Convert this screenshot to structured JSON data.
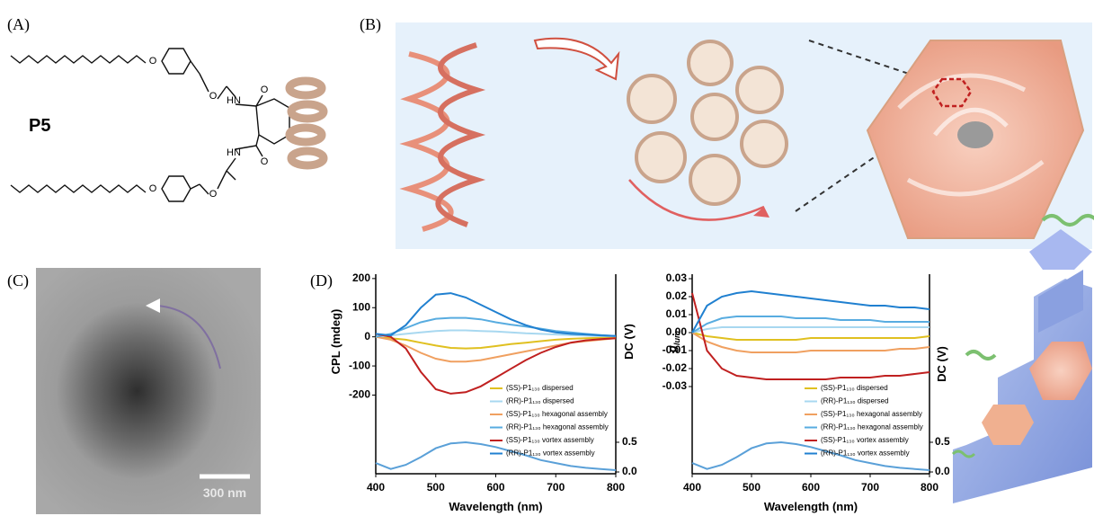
{
  "panels": {
    "a": {
      "label": "(A)",
      "compound": "P5",
      "atoms": [
        "O",
        "O",
        "O",
        "HN",
        "HN",
        "O",
        "O",
        "O"
      ]
    },
    "b": {
      "label": "(B)"
    },
    "c": {
      "label": "(C)",
      "scale_bar": "300 nm"
    },
    "d": {
      "label": "(D)"
    }
  },
  "chart_data": [
    {
      "type": "line",
      "xlabel": "Wavelength (nm)",
      "ylabel": "CPL (mdeg)",
      "y2label": "DC (V)",
      "x": [
        400,
        425,
        450,
        475,
        500,
        525,
        550,
        575,
        600,
        625,
        650,
        675,
        700,
        725,
        750,
        775,
        800
      ],
      "xlim": [
        400,
        800
      ],
      "xticks": [
        400,
        500,
        600,
        700,
        800
      ],
      "ylim": [
        -470,
        215
      ],
      "yticks": [
        200,
        100,
        0,
        -100,
        -200
      ],
      "y2lim": [
        -0.03,
        3.33
      ],
      "y2ticks": [
        {
          "value": 0,
          "label": "0.0"
        },
        {
          "value": 0.5,
          "label": "0.5"
        }
      ],
      "series": [
        {
          "name": "(SS)-P1₁₃₀ dispersed",
          "color": "#e0c020",
          "values": [
            0,
            -5,
            -10,
            -20,
            -30,
            -38,
            -40,
            -38,
            -32,
            -25,
            -20,
            -15,
            -10,
            -7,
            -5,
            -3,
            -2
          ]
        },
        {
          "name": "(RR)-P1₁₃₀ dispersed",
          "color": "#a8d8f0",
          "values": [
            0,
            5,
            10,
            15,
            20,
            22,
            22,
            20,
            18,
            15,
            12,
            10,
            8,
            6,
            4,
            3,
            2
          ]
        },
        {
          "name": "(SS)-P1₁₃₀ hexagonal assembly",
          "color": "#f0a060",
          "values": [
            0,
            -10,
            -30,
            -55,
            -75,
            -85,
            -85,
            -80,
            -70,
            -60,
            -50,
            -40,
            -30,
            -20,
            -15,
            -10,
            -5
          ]
        },
        {
          "name": "(RR)-P1₁₃₀ hexagonal assembly",
          "color": "#58ace0",
          "values": [
            0,
            10,
            30,
            50,
            62,
            65,
            65,
            60,
            50,
            42,
            35,
            28,
            20,
            15,
            10,
            6,
            3
          ]
        },
        {
          "name": "(SS)-P1₁₃₀ vortex assembly",
          "color": "#c02020",
          "values": [
            10,
            0,
            -40,
            -120,
            -180,
            -195,
            -190,
            -170,
            -140,
            -110,
            -80,
            -55,
            -35,
            -20,
            -12,
            -8,
            -5
          ]
        },
        {
          "name": "(RR)-P1₁₃₀ vortex assembly",
          "color": "#2080d0",
          "values": [
            10,
            5,
            40,
            100,
            145,
            150,
            135,
            110,
            85,
            60,
            40,
            25,
            15,
            10,
            8,
            5,
            3
          ]
        }
      ],
      "dc": {
        "color": "#5aa0d8",
        "axis": "y2",
        "values": [
          0.15,
          0.05,
          0.12,
          0.25,
          0.4,
          0.48,
          0.5,
          0.47,
          0.42,
          0.35,
          0.28,
          0.2,
          0.15,
          0.1,
          0.07,
          0.05,
          0.03
        ]
      }
    },
    {
      "type": "line",
      "xlabel": "Wavelength (nm)",
      "ylabel": {
        "main": "g",
        "sub": "lum"
      },
      "y2label": "DC (V)",
      "x": [
        400,
        425,
        450,
        475,
        500,
        525,
        550,
        575,
        600,
        625,
        650,
        675,
        700,
        725,
        750,
        775,
        800
      ],
      "xlim": [
        400,
        800
      ],
      "xticks": [
        400,
        500,
        600,
        700,
        800
      ],
      "ylim": [
        -0.0785,
        0.0325
      ],
      "yticks": [
        0.03,
        0.02,
        0.01,
        {
          "value": 0,
          "label": "0.00"
        },
        -0.01,
        -0.02,
        -0.03
      ],
      "y2lim": [
        -0.03,
        3.33
      ],
      "y2ticks": [
        {
          "value": 0,
          "label": "0.0"
        },
        {
          "value": 0.5,
          "label": "0.5"
        }
      ],
      "series": [
        {
          "name": "(SS)-P1₁₃₀ dispersed",
          "color": "#e0c020",
          "values": [
            0,
            -0.002,
            -0.003,
            -0.004,
            -0.004,
            -0.004,
            -0.004,
            -0.004,
            -0.003,
            -0.003,
            -0.003,
            -0.003,
            -0.003,
            -0.003,
            -0.003,
            -0.003,
            -0.002
          ]
        },
        {
          "name": "(RR)-P1₁₃₀ dispersed",
          "color": "#a8d8f0",
          "values": [
            0,
            0.002,
            0.003,
            0.003,
            0.003,
            0.003,
            0.003,
            0.003,
            0.003,
            0.003,
            0.003,
            0.003,
            0.003,
            0.003,
            0.003,
            0.003,
            0.003
          ]
        },
        {
          "name": "(SS)-P1₁₃₀ hexagonal assembly",
          "color": "#f0a060",
          "values": [
            0,
            -0.005,
            -0.008,
            -0.01,
            -0.011,
            -0.011,
            -0.011,
            -0.011,
            -0.01,
            -0.01,
            -0.01,
            -0.01,
            -0.01,
            -0.01,
            -0.009,
            -0.009,
            -0.008
          ]
        },
        {
          "name": "(RR)-P1₁₃₀ hexagonal assembly",
          "color": "#58ace0",
          "values": [
            0,
            0.005,
            0.008,
            0.009,
            0.009,
            0.009,
            0.009,
            0.008,
            0.008,
            0.008,
            0.007,
            0.007,
            0.007,
            0.006,
            0.006,
            0.006,
            0.006
          ]
        },
        {
          "name": "(SS)-P1₁₃₀ vortex assembly",
          "color": "#c02020",
          "values": [
            0.022,
            -0.01,
            -0.02,
            -0.024,
            -0.025,
            -0.026,
            -0.026,
            -0.026,
            -0.026,
            -0.026,
            -0.025,
            -0.025,
            -0.025,
            -0.024,
            -0.024,
            -0.023,
            -0.022
          ]
        },
        {
          "name": "(RR)-P1₁₃₀ vortex assembly",
          "color": "#2080d0",
          "values": [
            0,
            0.015,
            0.02,
            0.022,
            0.023,
            0.022,
            0.021,
            0.02,
            0.019,
            0.018,
            0.017,
            0.016,
            0.015,
            0.015,
            0.014,
            0.014,
            0.013
          ]
        }
      ],
      "dc": {
        "color": "#5aa0d8",
        "axis": "y2",
        "values": [
          0.15,
          0.05,
          0.12,
          0.25,
          0.4,
          0.48,
          0.5,
          0.47,
          0.42,
          0.35,
          0.28,
          0.2,
          0.15,
          0.1,
          0.07,
          0.05,
          0.03
        ]
      }
    }
  ]
}
